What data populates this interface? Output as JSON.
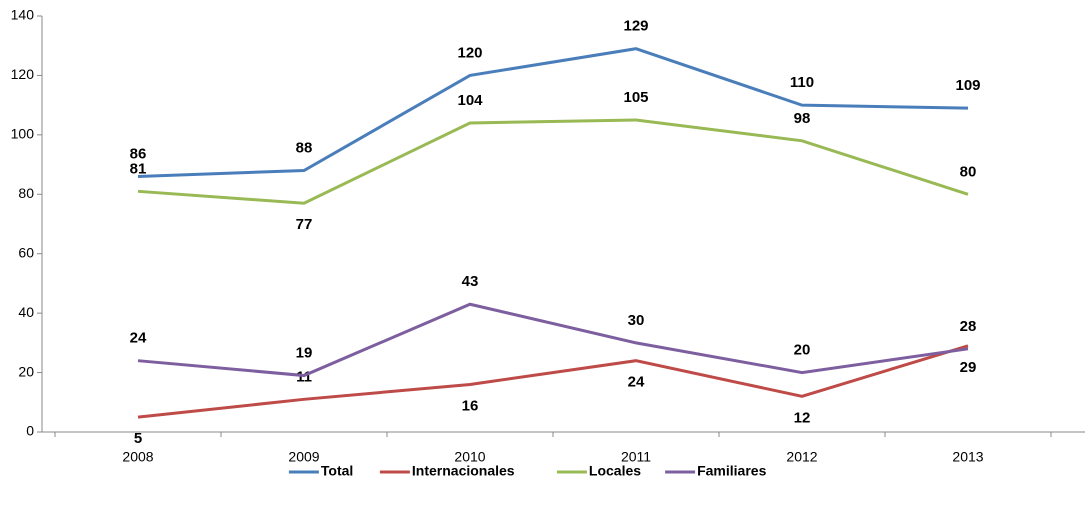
{
  "chart_data": {
    "type": "line",
    "categories": [
      "2008",
      "2009",
      "2010",
      "2011",
      "2012",
      "2013"
    ],
    "series": [
      {
        "name": "Total",
        "color": "#4a7ebb",
        "values": [
          86,
          88,
          120,
          129,
          110,
          109
        ]
      },
      {
        "name": "Internacionales",
        "color": "#be4b48",
        "values": [
          5,
          11,
          16,
          24,
          12,
          29
        ]
      },
      {
        "name": "Locales",
        "color": "#98b954",
        "values": [
          81,
          77,
          104,
          105,
          98,
          80
        ]
      },
      {
        "name": "Familiares",
        "color": "#7d5fa0",
        "values": [
          24,
          19,
          43,
          30,
          20,
          28
        ]
      }
    ],
    "ylim": [
      0,
      140
    ],
    "yticks": [
      0,
      20,
      40,
      60,
      80,
      100,
      120,
      140
    ],
    "legend": "bottom",
    "grid": false
  }
}
